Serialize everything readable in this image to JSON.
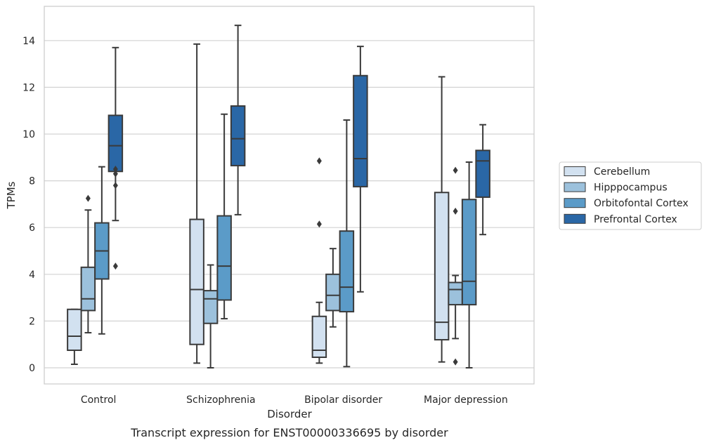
{
  "chart_data": {
    "type": "box",
    "title": "",
    "caption": "Transcript expression for ENST00000336695 by disorder",
    "xlabel": "Disorder",
    "ylabel": "TPMs",
    "ylim": [
      -0.7,
      15.4
    ],
    "yticks": [
      0,
      2,
      4,
      6,
      8,
      10,
      12,
      14
    ],
    "grid": "horizontal",
    "legend_position": "right",
    "categories": [
      "Control",
      "Schizophrenia",
      "Bipolar disorder",
      "Major depression"
    ],
    "series": [
      {
        "name": "Cerebellum",
        "color": "#d2e1f0",
        "boxes": [
          {
            "whislo": 0.15,
            "q1": 0.75,
            "med": 1.35,
            "q3": 2.5,
            "whishi": 2.5,
            "fliers": []
          },
          {
            "whislo": 0.2,
            "q1": 1.0,
            "med": 3.35,
            "q3": 6.35,
            "whishi": 13.85,
            "fliers": []
          },
          {
            "whislo": 0.2,
            "q1": 0.45,
            "med": 0.75,
            "q3": 2.2,
            "whishi": 2.8,
            "fliers": [
              6.15,
              8.85
            ]
          },
          {
            "whislo": 0.25,
            "q1": 1.2,
            "med": 1.95,
            "q3": 7.5,
            "whishi": 12.45,
            "fliers": []
          }
        ]
      },
      {
        "name": "Hipppocampus",
        "color": "#9cc1dc",
        "boxes": [
          {
            "whislo": 1.5,
            "q1": 2.45,
            "med": 2.95,
            "q3": 4.3,
            "whishi": 6.75,
            "fliers": [
              7.25
            ]
          },
          {
            "whislo": 0.0,
            "q1": 1.9,
            "med": 2.95,
            "q3": 3.3,
            "whishi": 4.4,
            "fliers": []
          },
          {
            "whislo": 1.75,
            "q1": 2.45,
            "med": 3.1,
            "q3": 4.0,
            "whishi": 5.1,
            "fliers": []
          },
          {
            "whislo": 1.25,
            "q1": 2.7,
            "med": 3.35,
            "q3": 3.65,
            "whishi": 3.95,
            "fliers": [
              0.25,
              6.7,
              8.45
            ]
          }
        ]
      },
      {
        "name": "Orbitofontal Cortex",
        "color": "#5b9bc8",
        "boxes": [
          {
            "whislo": 1.45,
            "q1": 3.8,
            "med": 5.0,
            "q3": 6.2,
            "whishi": 8.6,
            "fliers": []
          },
          {
            "whislo": 2.1,
            "q1": 2.9,
            "med": 4.35,
            "q3": 6.5,
            "whishi": 10.85,
            "fliers": []
          },
          {
            "whislo": 0.05,
            "q1": 2.4,
            "med": 3.45,
            "q3": 5.85,
            "whishi": 10.6,
            "fliers": []
          },
          {
            "whislo": 0.0,
            "q1": 2.7,
            "med": 3.7,
            "q3": 7.2,
            "whishi": 8.8,
            "fliers": []
          }
        ]
      },
      {
        "name": "Prefrontal Cortex",
        "color": "#2a67a6",
        "boxes": [
          {
            "whislo": 6.3,
            "q1": 8.4,
            "med": 9.5,
            "q3": 10.8,
            "whishi": 13.7,
            "fliers": [
              4.35,
              7.8,
              8.3,
              8.5
            ]
          },
          {
            "whislo": 6.55,
            "q1": 8.65,
            "med": 9.8,
            "q3": 11.2,
            "whishi": 14.65,
            "fliers": []
          },
          {
            "whislo": 3.25,
            "q1": 7.75,
            "med": 8.95,
            "q3": 12.5,
            "whishi": 13.75,
            "fliers": []
          },
          {
            "whislo": 5.7,
            "q1": 7.3,
            "med": 8.85,
            "q3": 9.3,
            "whishi": 10.4,
            "fliers": []
          }
        ]
      }
    ]
  }
}
